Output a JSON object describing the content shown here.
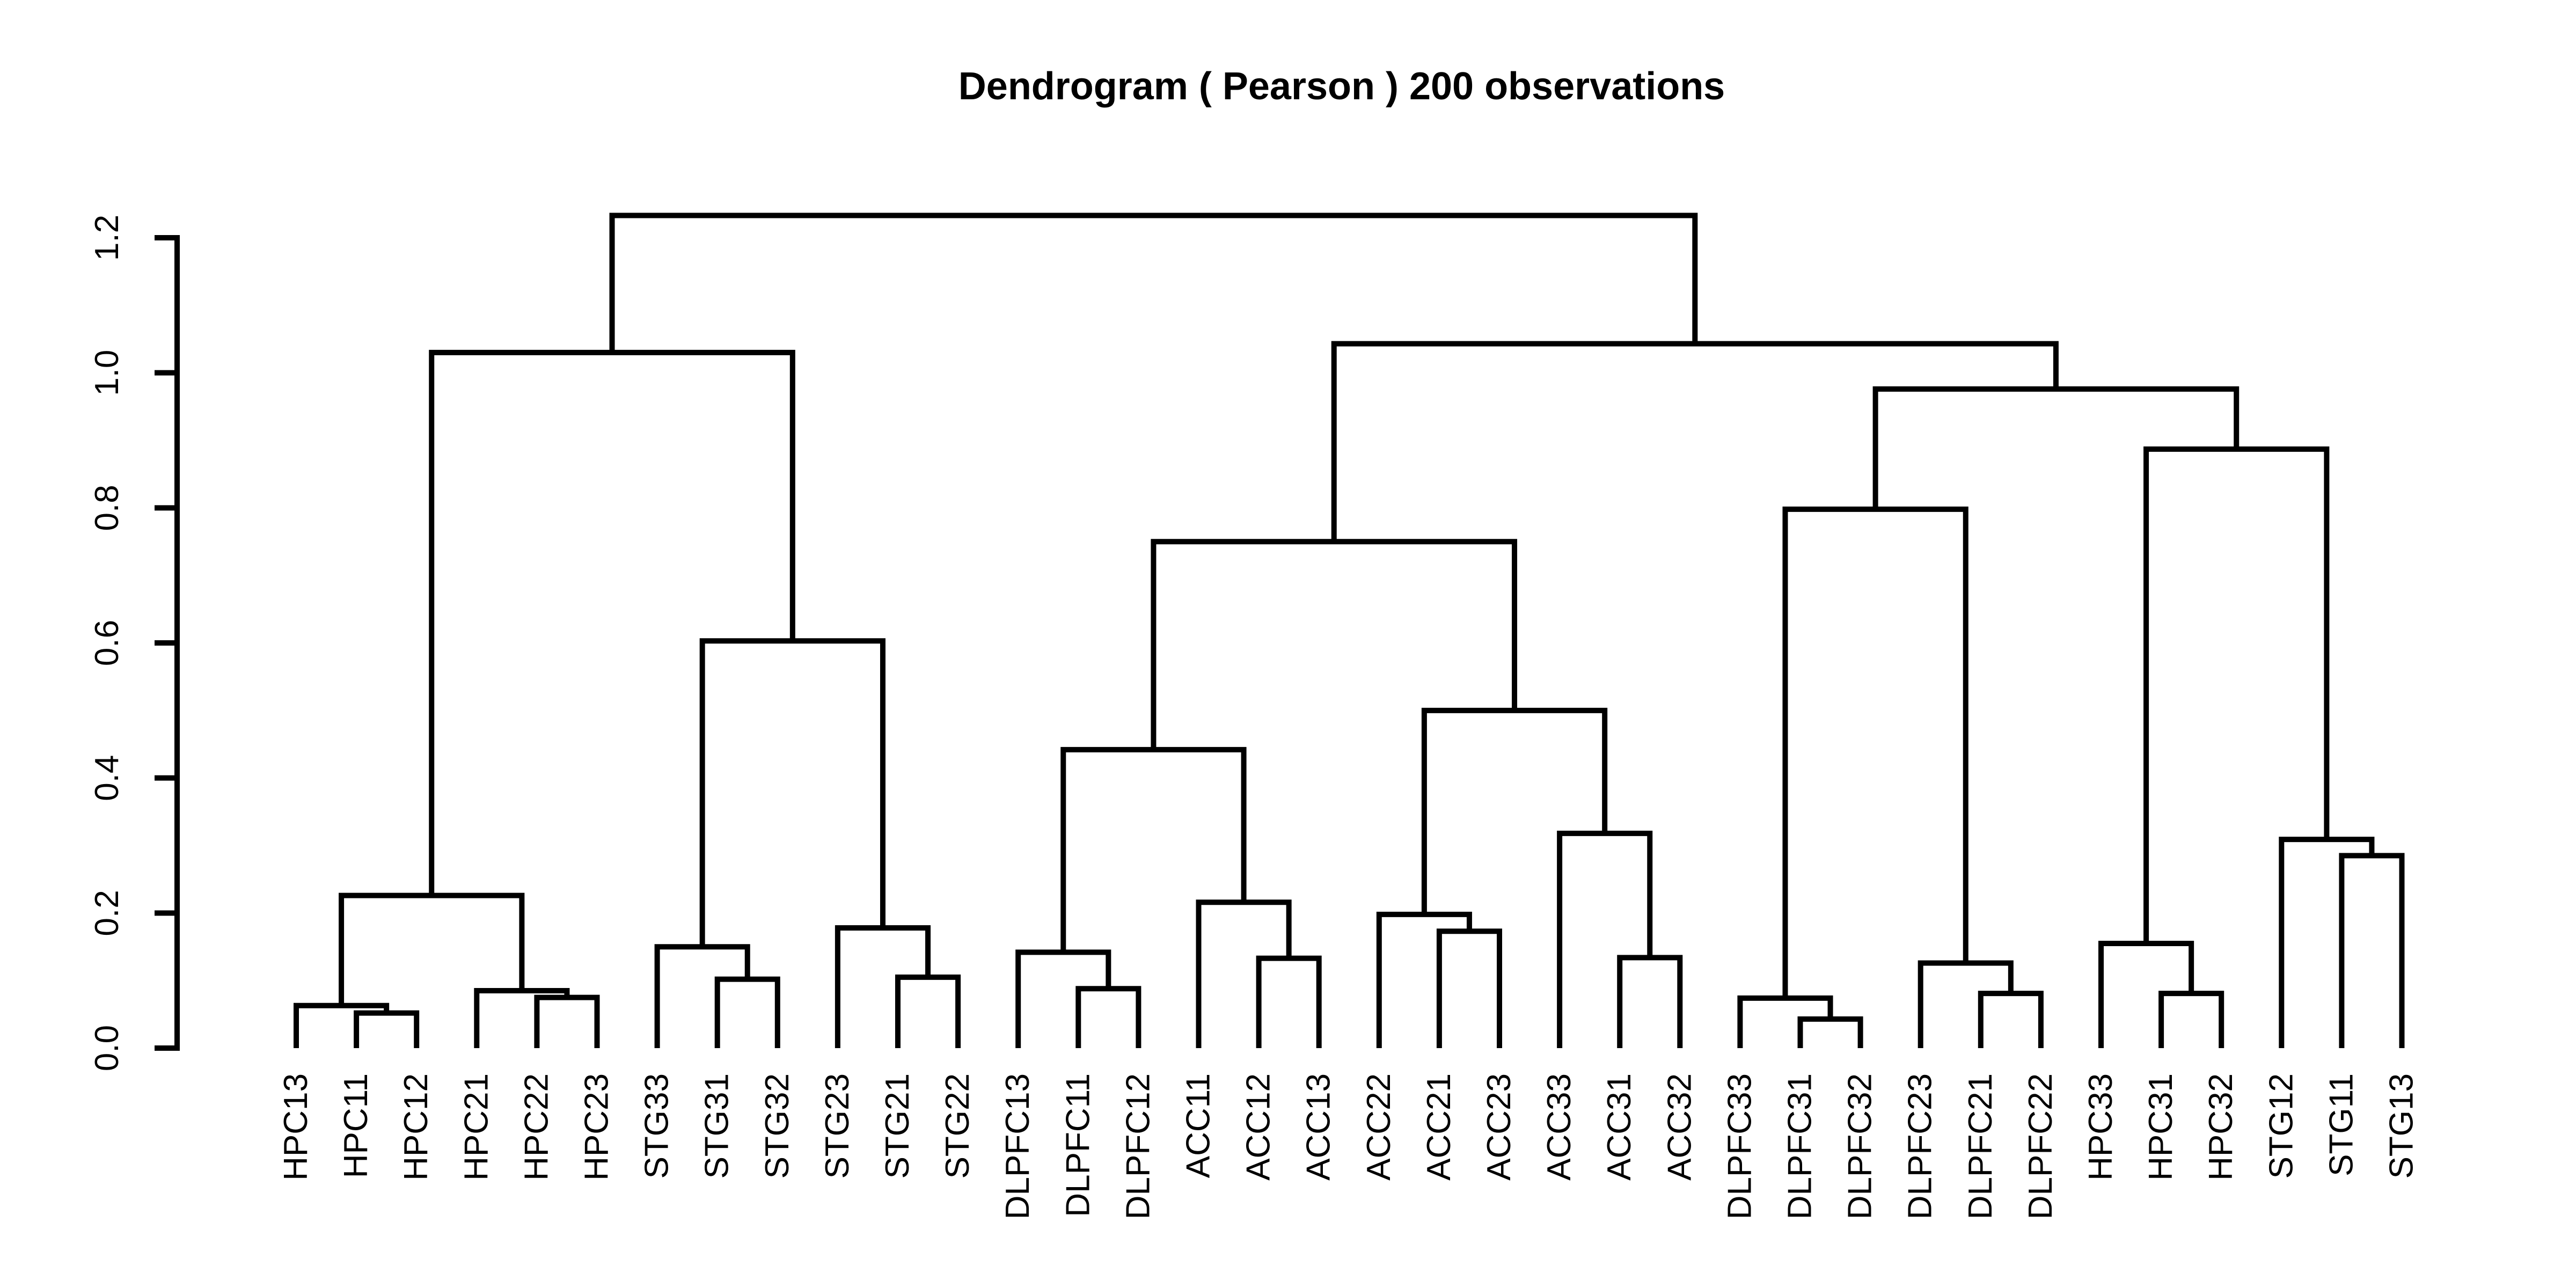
{
  "chart_data": {
    "type": "dendrogram",
    "title": "Dendrogram ( Pearson ) 200 observations",
    "xlabel": "",
    "ylabel": "",
    "ylim": [
      0,
      1.2
    ],
    "yticks": [
      0.0,
      0.2,
      0.4,
      0.6,
      0.8,
      1.0,
      1.2
    ],
    "ytick_labels": [
      "0.0",
      "0.2",
      "0.4",
      "0.6",
      "0.8",
      "1.0",
      "1.2"
    ],
    "leaves": [
      "HPC13",
      "HPC11",
      "HPC12",
      "HPC21",
      "HPC22",
      "HPC23",
      "STG33",
      "STG31",
      "STG32",
      "STG23",
      "STG21",
      "STG22",
      "DLPFC13",
      "DLPFC11",
      "DLPFC12",
      "ACC11",
      "ACC12",
      "ACC13",
      "ACC22",
      "ACC21",
      "ACC23",
      "ACC33",
      "ACC31",
      "ACC32",
      "DLPFC33",
      "DLPFC31",
      "DLPFC32",
      "DLPFC23",
      "DLPFC21",
      "DLPFC22",
      "HPC33",
      "HPC31",
      "HPC32",
      "STG12",
      "STG11",
      "STG13"
    ],
    "merges": [
      {
        "left": "HPC11",
        "right": "HPC12",
        "height": 0.052
      },
      {
        "left": "HPC13",
        "right": 0,
        "height": 0.063
      },
      {
        "left": "HPC22",
        "right": "HPC23",
        "height": 0.075
      },
      {
        "left": "HPC21",
        "right": 2,
        "height": 0.085
      },
      {
        "left": 1,
        "right": 3,
        "height": 0.226
      },
      {
        "left": "STG31",
        "right": "STG32",
        "height": 0.102
      },
      {
        "left": "STG33",
        "right": 5,
        "height": 0.15
      },
      {
        "left": "STG21",
        "right": "STG22",
        "height": 0.105
      },
      {
        "left": "STG23",
        "right": 7,
        "height": 0.178
      },
      {
        "left": 6,
        "right": 8,
        "height": 0.603
      },
      {
        "left": 4,
        "right": 9,
        "height": 1.03
      },
      {
        "left": "DLPFC11",
        "right": "DLPFC12",
        "height": 0.088
      },
      {
        "left": "DLPFC13",
        "right": 11,
        "height": 0.142
      },
      {
        "left": "ACC12",
        "right": "ACC13",
        "height": 0.133
      },
      {
        "left": "ACC11",
        "right": 13,
        "height": 0.216
      },
      {
        "left": 12,
        "right": 14,
        "height": 0.442
      },
      {
        "left": "ACC21",
        "right": "ACC23",
        "height": 0.173
      },
      {
        "left": "ACC22",
        "right": 16,
        "height": 0.198
      },
      {
        "left": "ACC31",
        "right": "ACC32",
        "height": 0.134
      },
      {
        "left": "ACC33",
        "right": 18,
        "height": 0.318
      },
      {
        "left": 17,
        "right": 19,
        "height": 0.5
      },
      {
        "left": 15,
        "right": 20,
        "height": 0.75
      },
      {
        "left": "DLPFC31",
        "right": "DLPFC32",
        "height": 0.043
      },
      {
        "left": "DLPFC33",
        "right": 22,
        "height": 0.074
      },
      {
        "left": "DLPFC21",
        "right": "DLPFC22",
        "height": 0.081
      },
      {
        "left": "DLPFC23",
        "right": 24,
        "height": 0.126
      },
      {
        "left": 23,
        "right": 25,
        "height": 0.798
      },
      {
        "left": "HPC31",
        "right": "HPC32",
        "height": 0.081
      },
      {
        "left": "HPC33",
        "right": 27,
        "height": 0.155
      },
      {
        "left": "STG11",
        "right": "STG13",
        "height": 0.285
      },
      {
        "left": "STG12",
        "right": 29,
        "height": 0.309
      },
      {
        "left": 28,
        "right": 30,
        "height": 0.887
      },
      {
        "left": 26,
        "right": 31,
        "height": 0.976
      },
      {
        "left": 21,
        "right": 32,
        "height": 1.043
      },
      {
        "left": 10,
        "right": 33,
        "height": 1.233
      }
    ]
  }
}
